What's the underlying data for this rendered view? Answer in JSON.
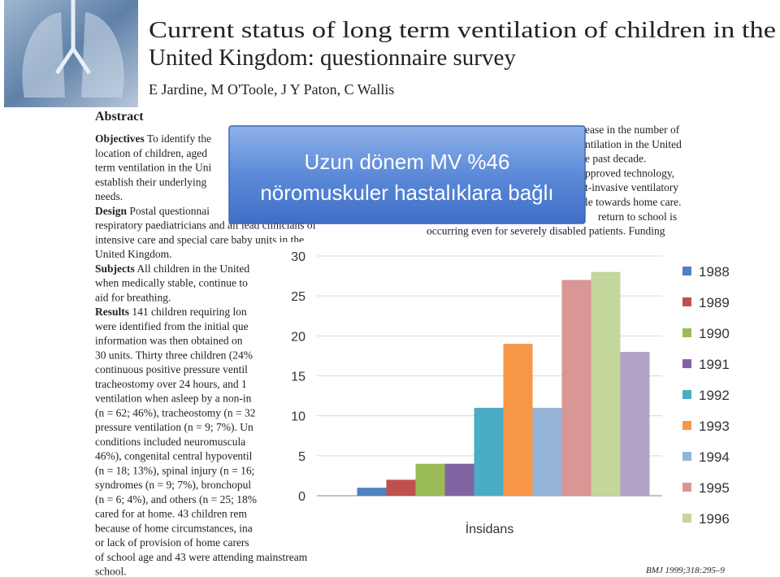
{
  "header": {
    "title_lines": [
      "Current status of long term ventilation of children in the",
      "United Kingdom: questionnaire survey"
    ],
    "authors": "E Jardine, M O'Toole, J Y Paton, C Wallis"
  },
  "abstract": {
    "heading": "Abstract",
    "left_lines": [
      {
        "label": "Objectives",
        "text": "To identify the"
      },
      {
        "text": "location of children, aged"
      },
      {
        "text": "term ventilation in the Uni"
      },
      {
        "text": "establish their underlying"
      },
      {
        "text": "needs."
      },
      {
        "label": "Design",
        "text": "Postal questionnai"
      },
      {
        "text": "respiratory paediatricians and all lead clinicians of"
      },
      {
        "text": "intensive care and special care baby units in the"
      },
      {
        "text": "United Kingdom."
      },
      {
        "label": "Subjects",
        "text": "All children in the United"
      },
      {
        "text": "when medically stable, continue to"
      },
      {
        "text": "aid for breathing."
      },
      {
        "label": "Results",
        "text": "141 children requiring lon"
      },
      {
        "text": "were identified from the initial que"
      },
      {
        "text": "information was then obtained on"
      },
      {
        "text": "30 units. Thirty three children (24%"
      },
      {
        "text": "continuous positive pressure ventil"
      },
      {
        "text": "tracheostomy over 24 hours, and 1"
      },
      {
        "text": "ventilation when asleep by a non-in"
      },
      {
        "text": "(n = 62; 46%), tracheostomy (n = 32"
      },
      {
        "text": "pressure ventilation (n = 9; 7%). Un"
      },
      {
        "text": "conditions included neuromuscula"
      },
      {
        "text": "46%), congenital central hypoventil"
      },
      {
        "text": "(n = 18; 13%), spinal injury (n = 16;"
      },
      {
        "text": "syndromes (n = 9; 7%), bronchopul"
      },
      {
        "text": "(n = 6; 4%), and others (n = 25; 18%"
      },
      {
        "text": "cared for at home. 43 children rem"
      },
      {
        "text": "because of home circumstances, ina"
      },
      {
        "text": "or lack of provision of home carers"
      },
      {
        "text": "of school age and 43 were attending mainstream"
      },
      {
        "text": "school."
      }
    ],
    "right_lines": [
      "ease in the number of",
      "ntilation in the United",
      "e past decade.",
      "pproved technology,",
      "t-invasive ventilatory",
      "le towards home care.",
      "return to school is",
      "occurring even for severely disabled patients. Funding"
    ]
  },
  "citation": "BMJ 1999;318:295–9",
  "callout": {
    "lines": [
      "Uzun dönem MV %46",
      "nöromuskuler hastalıklara bağlı"
    ]
  },
  "chart_data": {
    "type": "bar",
    "categories": [
      "İnsidans"
    ],
    "series": [
      {
        "name": "1988",
        "color": "#4f81bd",
        "values": [
          1
        ]
      },
      {
        "name": "1989",
        "color": "#c0504d",
        "values": [
          2
        ]
      },
      {
        "name": "1990",
        "color": "#9bbb59",
        "values": [
          4
        ]
      },
      {
        "name": "1991",
        "color": "#8064a2",
        "values": [
          4
        ]
      },
      {
        "name": "1992",
        "color": "#4bacc6",
        "values": [
          11
        ]
      },
      {
        "name": "1993",
        "color": "#f79646",
        "values": [
          19
        ]
      },
      {
        "name": "1994",
        "color": "#95b3d7",
        "values": [
          11
        ]
      },
      {
        "name": "1995",
        "color": "#d99694",
        "values": [
          27
        ]
      },
      {
        "name": "1996",
        "color": "#c3d69b",
        "values": [
          28
        ]
      },
      {
        "name": null,
        "color": "#b3a2c7",
        "values": [
          18
        ]
      }
    ],
    "ylim": [
      0,
      30
    ],
    "yticks": [
      0,
      5,
      10,
      15,
      20,
      25,
      30
    ],
    "grid": true,
    "legend": "right"
  }
}
